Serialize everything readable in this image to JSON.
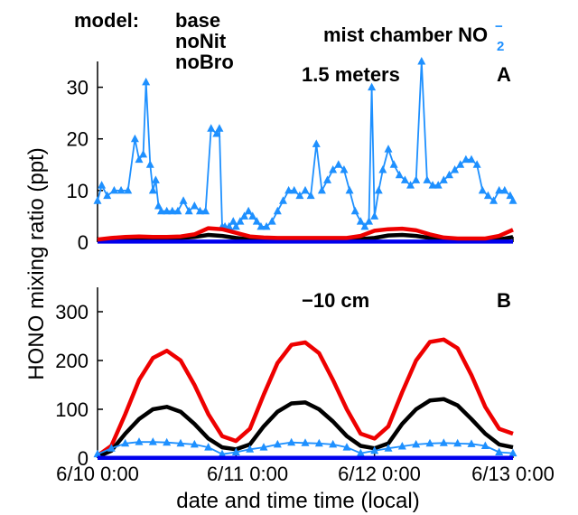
{
  "ylabel": "HONO mixing ratio (ppt)",
  "xlabel": "date and time time (local)",
  "legend": {
    "prefix": "model:",
    "entries": [
      {
        "label": "base",
        "color": "#000000"
      },
      {
        "label": "noNit",
        "color": "#0000ee"
      },
      {
        "label": "noBro",
        "color": "#ee0000"
      }
    ],
    "obs_label": "mist chamber NO",
    "obs_sub": "2",
    "obs_sup": "−",
    "obs_color": "#1e90ff"
  },
  "x_ticks": [
    "6/10 0:00",
    "6/11 0:00",
    "6/12 0:00",
    "6/13 0:00"
  ],
  "chart_data": [
    {
      "type": "line",
      "panel": "A",
      "panel_title": "1.5 meters",
      "x_unit": "days since 6/10 0:00",
      "ylim": [
        0,
        35
      ],
      "y_ticks": [
        0,
        10,
        20,
        30
      ],
      "series": [
        {
          "name": "mist chamber NO2-",
          "color": "#1e90ff",
          "marker": "triangle",
          "x": [
            0.0,
            0.03,
            0.07,
            0.12,
            0.17,
            0.22,
            0.27,
            0.3,
            0.33,
            0.35,
            0.38,
            0.4,
            0.42,
            0.44,
            0.46,
            0.5,
            0.54,
            0.58,
            0.62,
            0.66,
            0.7,
            0.74,
            0.78,
            0.82,
            0.86,
            0.88,
            0.9,
            0.92,
            0.95,
            0.98,
            1.0,
            1.03,
            1.06,
            1.09,
            1.12,
            1.15,
            1.18,
            1.22,
            1.26,
            1.3,
            1.34,
            1.38,
            1.42,
            1.46,
            1.5,
            1.54,
            1.58,
            1.62,
            1.66,
            1.7,
            1.74,
            1.78,
            1.82,
            1.86,
            1.9,
            1.93,
            1.96,
            1.98,
            2.0,
            2.03,
            2.06,
            2.1,
            2.14,
            2.18,
            2.22,
            2.26,
            2.3,
            2.34,
            2.38,
            2.42,
            2.46,
            2.5,
            2.54,
            2.58,
            2.62,
            2.66,
            2.7,
            2.74,
            2.78,
            2.82,
            2.86,
            2.9,
            2.94,
            2.98,
            3.0
          ],
          "y": [
            8,
            11,
            9,
            10,
            10,
            10,
            20,
            16,
            17,
            31,
            15,
            10,
            12,
            7,
            6,
            6,
            6,
            6,
            8,
            6,
            7,
            6,
            6,
            22,
            21,
            22,
            3,
            3,
            3,
            4,
            3,
            4,
            5,
            6,
            5,
            4,
            3,
            3,
            4,
            6,
            8,
            10,
            10,
            9,
            10,
            9,
            19,
            10,
            12,
            14,
            15,
            14,
            10,
            6,
            4,
            3,
            4,
            30,
            5,
            10,
            14,
            18,
            15,
            13,
            12,
            11,
            12,
            35,
            12,
            11,
            11,
            12,
            13,
            14,
            15,
            16,
            16,
            15,
            10,
            9,
            8,
            10,
            10,
            9,
            8
          ]
        },
        {
          "name": "base",
          "color": "#000000",
          "x": [
            0.0,
            0.1,
            0.2,
            0.3,
            0.4,
            0.5,
            0.6,
            0.7,
            0.8,
            0.9,
            1.0,
            1.1,
            1.2,
            1.3,
            1.4,
            1.5,
            1.6,
            1.7,
            1.8,
            1.9,
            2.0,
            2.1,
            2.2,
            2.3,
            2.4,
            2.5,
            2.6,
            2.7,
            2.8,
            2.9,
            3.0
          ],
          "y": [
            0.2,
            0.4,
            0.5,
            0.6,
            0.6,
            0.7,
            0.8,
            1.0,
            1.4,
            1.2,
            0.8,
            0.5,
            0.5,
            0.4,
            0.4,
            0.4,
            0.4,
            0.4,
            0.4,
            0.6,
            0.8,
            1.3,
            1.4,
            1.2,
            0.8,
            0.5,
            0.4,
            0.4,
            0.4,
            0.5,
            1.0
          ]
        },
        {
          "name": "noNit",
          "color": "#0000ee",
          "x": [
            0.0,
            1.0,
            2.0,
            3.0
          ],
          "y": [
            0.1,
            0.1,
            0.1,
            0.1
          ]
        },
        {
          "name": "noBro",
          "color": "#ee0000",
          "x": [
            0.0,
            0.1,
            0.2,
            0.3,
            0.4,
            0.5,
            0.6,
            0.7,
            0.8,
            0.9,
            1.0,
            1.1,
            1.2,
            1.3,
            1.4,
            1.5,
            1.6,
            1.7,
            1.8,
            1.9,
            2.0,
            2.1,
            2.2,
            2.3,
            2.4,
            2.5,
            2.6,
            2.7,
            2.8,
            2.9,
            3.0
          ],
          "y": [
            0.5,
            0.8,
            1.0,
            1.1,
            1.0,
            1.0,
            1.1,
            1.5,
            2.7,
            2.5,
            1.8,
            1.1,
            0.9,
            0.8,
            0.8,
            0.8,
            0.8,
            0.8,
            0.8,
            1.2,
            2.2,
            2.5,
            2.6,
            2.3,
            1.5,
            0.9,
            0.7,
            0.7,
            0.7,
            1.2,
            2.4
          ]
        }
      ]
    },
    {
      "type": "line",
      "panel": "B",
      "panel_title": "−10 cm",
      "x_unit": "days since 6/10 0:00",
      "ylim": [
        0,
        350
      ],
      "y_ticks": [
        0,
        100,
        200,
        300
      ],
      "series": [
        {
          "name": "noBro",
          "color": "#ee0000",
          "x": [
            0.0,
            0.1,
            0.2,
            0.3,
            0.4,
            0.5,
            0.6,
            0.7,
            0.8,
            0.9,
            1.0,
            1.1,
            1.2,
            1.3,
            1.4,
            1.5,
            1.6,
            1.7,
            1.8,
            1.9,
            2.0,
            2.1,
            2.2,
            2.3,
            2.4,
            2.5,
            2.6,
            2.7,
            2.8,
            2.9,
            3.0
          ],
          "y": [
            5,
            25,
            90,
            160,
            205,
            220,
            200,
            150,
            90,
            45,
            35,
            60,
            130,
            195,
            232,
            237,
            215,
            160,
            100,
            50,
            40,
            65,
            135,
            200,
            238,
            243,
            225,
            170,
            105,
            60,
            50
          ]
        },
        {
          "name": "base",
          "color": "#000000",
          "x": [
            0.0,
            0.1,
            0.2,
            0.3,
            0.4,
            0.5,
            0.6,
            0.7,
            0.8,
            0.9,
            1.0,
            1.1,
            1.2,
            1.3,
            1.4,
            1.5,
            1.6,
            1.7,
            1.8,
            1.9,
            2.0,
            2.1,
            2.2,
            2.3,
            2.4,
            2.5,
            2.6,
            2.7,
            2.8,
            2.9,
            3.0
          ],
          "y": [
            3,
            15,
            50,
            80,
            100,
            105,
            95,
            70,
            40,
            22,
            18,
            28,
            65,
            95,
            112,
            114,
            100,
            75,
            45,
            25,
            20,
            30,
            70,
            100,
            118,
            121,
            108,
            80,
            50,
            28,
            22
          ]
        },
        {
          "name": "mist chamber NO2-",
          "color": "#1e90ff",
          "marker": "triangle",
          "x": [
            0.0,
            0.1,
            0.2,
            0.3,
            0.4,
            0.5,
            0.6,
            0.7,
            0.8,
            0.9,
            1.0,
            1.1,
            1.2,
            1.3,
            1.4,
            1.5,
            1.6,
            1.7,
            1.8,
            1.9,
            2.0,
            2.1,
            2.2,
            2.3,
            2.4,
            2.5,
            2.6,
            2.7,
            2.8,
            2.9,
            3.0
          ],
          "y": [
            8,
            20,
            30,
            33,
            33,
            32,
            30,
            28,
            22,
            8,
            12,
            18,
            22,
            28,
            32,
            31,
            30,
            28,
            22,
            10,
            15,
            20,
            24,
            28,
            30,
            31,
            30,
            29,
            25,
            12,
            10
          ]
        },
        {
          "name": "noNit",
          "color": "#0000ee",
          "x": [
            0.0,
            1.0,
            2.0,
            3.0
          ],
          "y": [
            0.5,
            0.5,
            0.5,
            0.5
          ]
        }
      ]
    }
  ]
}
